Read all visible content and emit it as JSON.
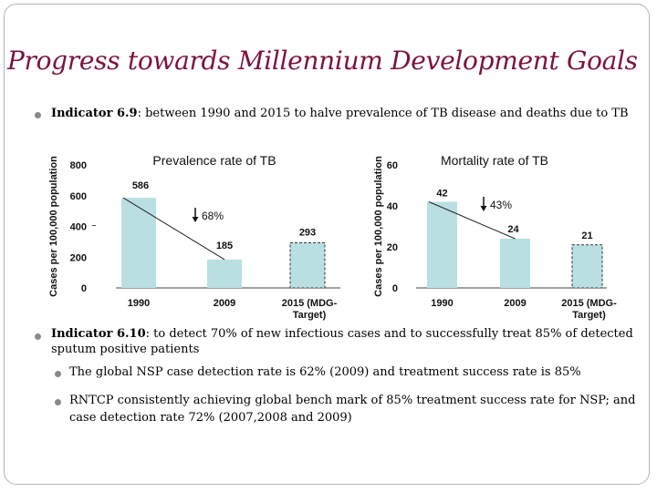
{
  "slide": {
    "title": "Progress towards Millennium Development Goals",
    "bullet1": {
      "label": "Indicator 6.9",
      "text": ": between 1990 and 2015 to halve prevalence of TB disease and deaths due to TB"
    },
    "bullet2": {
      "label": "Indicator 6.10",
      "text_line1": ": to detect 70% of new infectious cases and to  successfully treat 85% of detected",
      "text_line2": "sputum positive patients"
    },
    "sub1": "The global NSP case detection rate is 62% (2009) and treatment success rate is 85%",
    "sub2_line1": "RNTCP consistently achieving global bench mark of 85% treatment success rate for NSP; and",
    "sub2_line2": "case detection rate 72% (2007,2008 and 2009)"
  },
  "chart_data": [
    {
      "type": "bar",
      "title": "Prevalence rate of TB",
      "ylabel": "Cases per 100,000 population",
      "xlabel": "",
      "categories": [
        "1990",
        "2009",
        "2015 (MDG-Target)"
      ],
      "category_lines": [
        [
          "1990"
        ],
        [
          "2009"
        ],
        [
          "2015 (MDG-",
          "Target)"
        ]
      ],
      "values": [
        586,
        185,
        293
      ],
      "data_labels": [
        "586",
        "185",
        "293"
      ],
      "target_dashed": [
        false,
        false,
        true
      ],
      "ylim": [
        0,
        800
      ],
      "yticks": [
        0,
        200,
        400,
        600,
        800
      ],
      "annotation": "68%",
      "grid": false,
      "bar_color": "#b9dfe3"
    },
    {
      "type": "bar",
      "title": "Mortality rate of TB",
      "ylabel": "Cases per 100,000 population",
      "xlabel": "",
      "categories": [
        "1990",
        "2009",
        "2015 (MDG-Target)"
      ],
      "category_lines": [
        [
          "1990"
        ],
        [
          "2009"
        ],
        [
          "2015 (MDG-",
          "Target)"
        ]
      ],
      "values": [
        42,
        24,
        21
      ],
      "data_labels": [
        "42",
        "24",
        "21"
      ],
      "target_dashed": [
        false,
        false,
        true
      ],
      "ylim": [
        0,
        60
      ],
      "yticks": [
        0,
        20,
        40,
        60
      ],
      "annotation": "43%",
      "grid": false,
      "bar_color": "#b9dfe3"
    }
  ]
}
